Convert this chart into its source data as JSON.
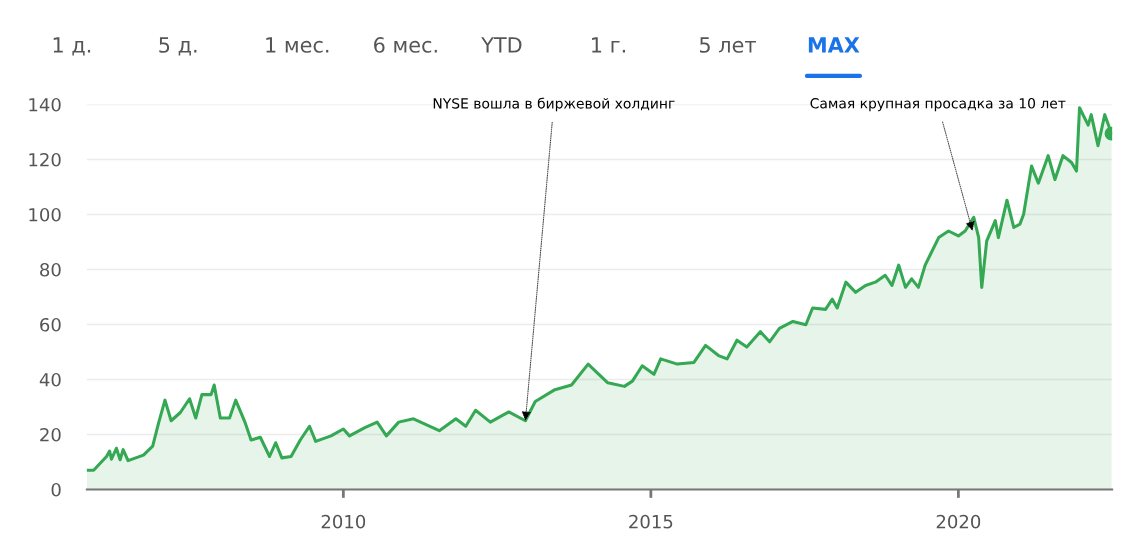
{
  "chart_data": {
    "type": "area",
    "x": [
      2005.83,
      2005.94,
      2006.15,
      2006.2,
      2006.23,
      2006.31,
      2006.37,
      2006.42,
      2006.5,
      2006.75,
      2006.9,
      2007.0,
      2007.1,
      2007.2,
      2007.35,
      2007.5,
      2007.6,
      2007.7,
      2007.85,
      2007.9,
      2008.0,
      2008.15,
      2008.25,
      2008.4,
      2008.5,
      2008.65,
      2008.8,
      2008.9,
      2009.0,
      2009.15,
      2009.3,
      2009.45,
      2009.55,
      2009.8,
      2010.0,
      2010.1,
      2010.35,
      2010.55,
      2010.7,
      2010.9,
      2011.14,
      2011.56,
      2011.83,
      2011.99,
      2012.15,
      2012.39,
      2012.69,
      2012.96,
      2013.12,
      2013.44,
      2013.71,
      2013.98,
      2014.3,
      2014.57,
      2014.7,
      2014.86,
      2015.05,
      2015.16,
      2015.43,
      2015.7,
      2015.89,
      2016.1,
      2016.24,
      2016.4,
      2016.56,
      2016.78,
      2016.93,
      2017.09,
      2017.31,
      2017.52,
      2017.63,
      2017.84,
      2017.95,
      2018.03,
      2018.17,
      2018.33,
      2018.49,
      2018.65,
      2018.81,
      2018.92,
      2019.03,
      2019.14,
      2019.24,
      2019.35,
      2019.46,
      2019.68,
      2019.84,
      2020.0,
      2020.11,
      2020.25,
      2020.33,
      2020.38,
      2020.46,
      2020.6,
      2020.65,
      2020.79,
      2020.9,
      2021.0,
      2021.06,
      2021.19,
      2021.3,
      2021.46,
      2021.57,
      2021.7,
      2021.84,
      2021.92,
      2021.97,
      2022.11,
      2022.16,
      2022.27,
      2022.38,
      2022.49
    ],
    "values": [
      7,
      7,
      12,
      14,
      11,
      15,
      10.8,
      14.5,
      10.5,
      12.5,
      15.8,
      24.5,
      32.5,
      25,
      28,
      33,
      26,
      34.5,
      34.5,
      38,
      26,
      26,
      32.5,
      24.5,
      18,
      19,
      12,
      17,
      11.5,
      12,
      18,
      23,
      17.5,
      19.5,
      22,
      19.5,
      22.5,
      24.5,
      19.5,
      24.5,
      25.7,
      21.4,
      25.7,
      23,
      28.8,
      24.5,
      28.2,
      25,
      32,
      36.3,
      38,
      45.6,
      38.8,
      37.5,
      39.4,
      45,
      41.9,
      47.5,
      45.6,
      46.2,
      52.4,
      48.7,
      47.5,
      54.3,
      51.8,
      57.4,
      53.7,
      58.6,
      61.1,
      59.9,
      66,
      65.5,
      69.2,
      66,
      75.4,
      71.7,
      74.2,
      75.4,
      77.9,
      74.2,
      81.6,
      73.5,
      76.6,
      73.5,
      81.6,
      91.6,
      94,
      92.2,
      94,
      99,
      91.6,
      73.5,
      90.3,
      97.8,
      91.6,
      105.2,
      95.3,
      96.5,
      100,
      117.6,
      111.4,
      121.4,
      112.7,
      121.4,
      118.9,
      115.8,
      138.8,
      132.5,
      136.3,
      125,
      136.3,
      129.4
    ],
    "color": "#34a853",
    "xlim": [
      2005.83,
      2022.5
    ],
    "xticks": [
      2010,
      2015,
      2020
    ],
    "ylim": [
      0,
      140
    ],
    "yticks": [
      0,
      20,
      40,
      60,
      80,
      100,
      120,
      140
    ],
    "grid": "y",
    "annotations": [
      "1 д.",
      "5 д.",
      "1 мес.",
      "6 мес.",
      "YTD",
      "1 г.",
      "5 лет",
      "MAX",
      {
        "text": "NYSE вошла в биржевой холдинг",
        "x": 2012.96,
        "y": 25
      },
      {
        "text": "Самая крупная просадка за 10 лет",
        "x": 2020.23,
        "y": 94
      }
    ]
  }
}
